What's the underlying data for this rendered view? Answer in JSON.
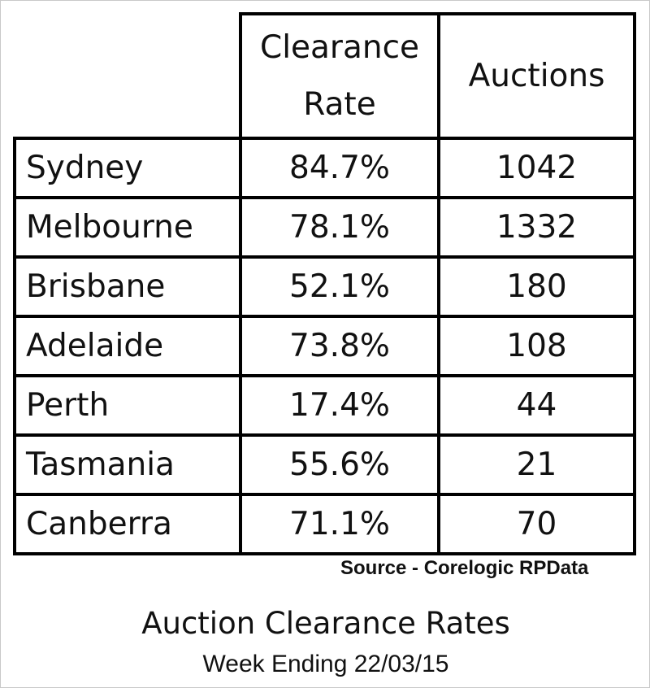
{
  "table": {
    "headers": {
      "clearance_rate": "Clearance Rate",
      "clearance_rate_line1": "Clearance",
      "clearance_rate_line2": "Rate",
      "auctions": "Auctions"
    },
    "rows": [
      {
        "city": "Sydney",
        "rate": "84.7%",
        "auctions": "1042"
      },
      {
        "city": "Melbourne",
        "rate": "78.1%",
        "auctions": "1332"
      },
      {
        "city": "Brisbane",
        "rate": "52.1%",
        "auctions": "180"
      },
      {
        "city": "Adelaide",
        "rate": "73.8%",
        "auctions": "108"
      },
      {
        "city": "Perth",
        "rate": "17.4%",
        "auctions": "44"
      },
      {
        "city": "Tasmania",
        "rate": "55.6%",
        "auctions": "21"
      },
      {
        "city": "Canberra",
        "rate": "71.1%",
        "auctions": "70"
      }
    ]
  },
  "source": "Source - Corelogic RPData",
  "title": "Auction Clearance Rates",
  "subtitle": "Week Ending 22/03/15"
}
